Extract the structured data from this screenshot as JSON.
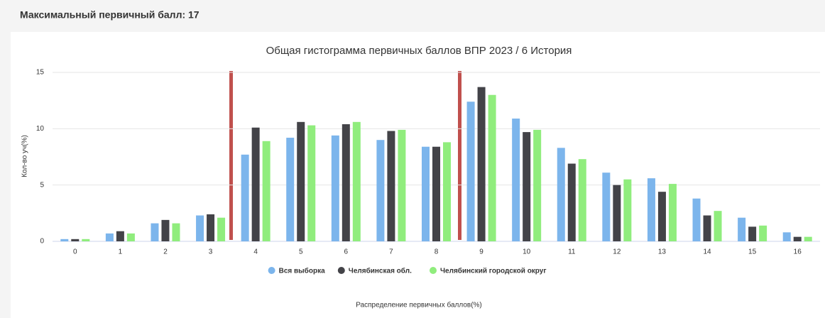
{
  "header": {
    "title": "Максимальный первичный балл: 17"
  },
  "chart_data": {
    "type": "bar",
    "title": "Общая гистограмма первичных баллов ВПР 2023 / 6 История",
    "y_label": "Кол-во уч(%)",
    "x_label": "Распределение первичных баллов(%)",
    "categories": [
      "0",
      "1",
      "2",
      "3",
      "4",
      "5",
      "6",
      "7",
      "8",
      "9",
      "10",
      "11",
      "12",
      "13",
      "14",
      "15",
      "16"
    ],
    "series": [
      {
        "name": "Вся выборка",
        "color": "#7cb5ec",
        "values": [
          0.2,
          0.7,
          1.6,
          2.3,
          7.7,
          9.2,
          9.4,
          9.0,
          8.4,
          12.4,
          10.9,
          8.3,
          6.1,
          5.6,
          3.8,
          2.1,
          0.8
        ]
      },
      {
        "name": "Челябинская обл.",
        "color": "#434348",
        "values": [
          0.2,
          0.9,
          1.9,
          2.4,
          10.1,
          10.6,
          10.4,
          9.8,
          8.4,
          13.7,
          9.7,
          6.9,
          5.0,
          4.4,
          2.3,
          1.3,
          0.4
        ]
      },
      {
        "name": "Челябинский городской округ",
        "color": "#90ed7d",
        "values": [
          0.2,
          0.7,
          1.6,
          2.1,
          8.9,
          10.3,
          10.6,
          9.9,
          8.8,
          13.0,
          9.9,
          7.3,
          5.5,
          5.1,
          2.7,
          1.4,
          0.4
        ]
      }
    ],
    "ylim": [
      0,
      15
    ],
    "yticks": [
      0,
      5,
      10,
      15
    ],
    "grid": true,
    "legend": "bottom"
  }
}
